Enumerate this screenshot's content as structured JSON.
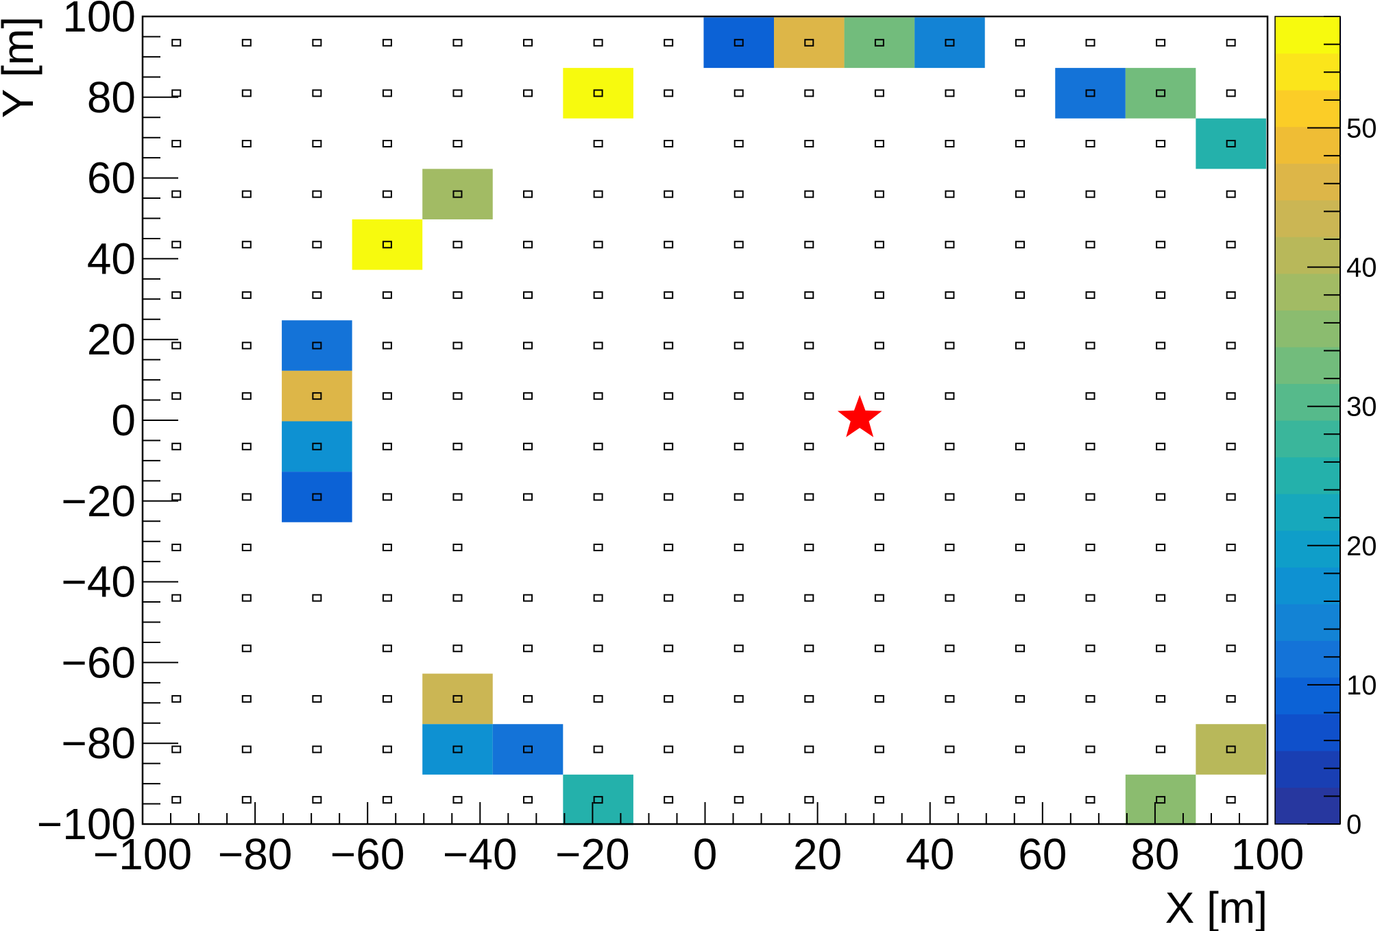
{
  "chart_data": {
    "type": "heatmap",
    "xlabel": "X [m]",
    "ylabel": "Y [m]",
    "xlim": [
      -100,
      100
    ],
    "ylim": [
      -100,
      100
    ],
    "x_ticks": [
      "−100",
      "−80",
      "−60",
      "−40",
      "−20",
      "0",
      "20",
      "40",
      "60",
      "80",
      "100"
    ],
    "y_ticks": [
      "100",
      "80",
      "60",
      "40",
      "20",
      "0",
      "−20",
      "−40",
      "−60",
      "−80",
      "−100"
    ],
    "x_tick_values": [
      -100,
      -80,
      -60,
      -40,
      -20,
      0,
      20,
      40,
      60,
      80,
      100
    ],
    "y_tick_values": [
      100,
      80,
      60,
      40,
      20,
      0,
      -20,
      -40,
      -60,
      -80,
      -100
    ],
    "colorbar": {
      "range": [
        0,
        58
      ],
      "ticks": [
        "0",
        "10",
        "20",
        "30",
        "40",
        "50"
      ],
      "tick_values": [
        0,
        10,
        20,
        30,
        40,
        50
      ],
      "n_levels": 20,
      "colors": [
        "#27379f",
        "#193fb3",
        "#0f50cb",
        "#0c62d6",
        "#1473d8",
        "#1383d5",
        "#0e91d2",
        "#0f9ec9",
        "#17a8bc",
        "#24b1ab",
        "#3ab69b",
        "#56ba8b",
        "#72bc7c",
        "#8bbc6f",
        "#a2bb64",
        "#b8b85a",
        "#cbb654",
        "#ddb648",
        "#efbd35",
        "#fbcd27",
        "#fbe51b",
        "#f7fa0e"
      ]
    },
    "grid": {
      "detector_x": [
        -94,
        -81.5,
        -69,
        -56.5,
        -44,
        -31.5,
        -19,
        -6.5,
        6,
        18.5,
        31,
        43.5,
        56,
        68.5,
        81,
        93.5
      ],
      "detector_y": [
        93.5,
        81,
        68.5,
        56,
        43.5,
        31,
        18.5,
        6,
        -6.5,
        -19,
        -31.5,
        -44,
        -56.5,
        -69,
        -81.5,
        -94
      ],
      "missing_detectors": [
        [
          -94,
          -56.5
        ],
        [
          -69,
          -31.5
        ],
        [
          -69,
          -56.5
        ],
        [
          -31.5,
          68.5
        ],
        [
          -31.5,
          -31.5
        ],
        [
          56,
          6
        ]
      ]
    },
    "cells": [
      {
        "x": 6,
        "y": 93.5,
        "value": 9
      },
      {
        "x": 18.5,
        "y": 93.5,
        "value": 46
      },
      {
        "x": 31,
        "y": 93.5,
        "value": 33
      },
      {
        "x": 43.5,
        "y": 93.5,
        "value": 15
      },
      {
        "x": -19,
        "y": 81,
        "value": 57
      },
      {
        "x": 68.5,
        "y": 81,
        "value": 11
      },
      {
        "x": 81,
        "y": 81,
        "value": 33
      },
      {
        "x": 93.5,
        "y": 68.5,
        "value": 24
      },
      {
        "x": -44,
        "y": 56,
        "value": 38
      },
      {
        "x": -56.5,
        "y": 43.5,
        "value": 57
      },
      {
        "x": -69,
        "y": 18.5,
        "value": 11
      },
      {
        "x": -69,
        "y": 6,
        "value": 46
      },
      {
        "x": -69,
        "y": -6.5,
        "value": 17
      },
      {
        "x": -69,
        "y": -19,
        "value": 9
      },
      {
        "x": -44,
        "y": -69,
        "value": 44
      },
      {
        "x": -44,
        "y": -81.5,
        "value": 17
      },
      {
        "x": -31.5,
        "y": -81.5,
        "value": 11
      },
      {
        "x": 93.5,
        "y": -81.5,
        "value": 40
      },
      {
        "x": -19,
        "y": -94,
        "value": 24
      },
      {
        "x": 81,
        "y": -94,
        "value": 35
      }
    ],
    "marker": {
      "shape": "star",
      "x": 27.5,
      "y": 0.5,
      "color": "#ff0000"
    }
  }
}
